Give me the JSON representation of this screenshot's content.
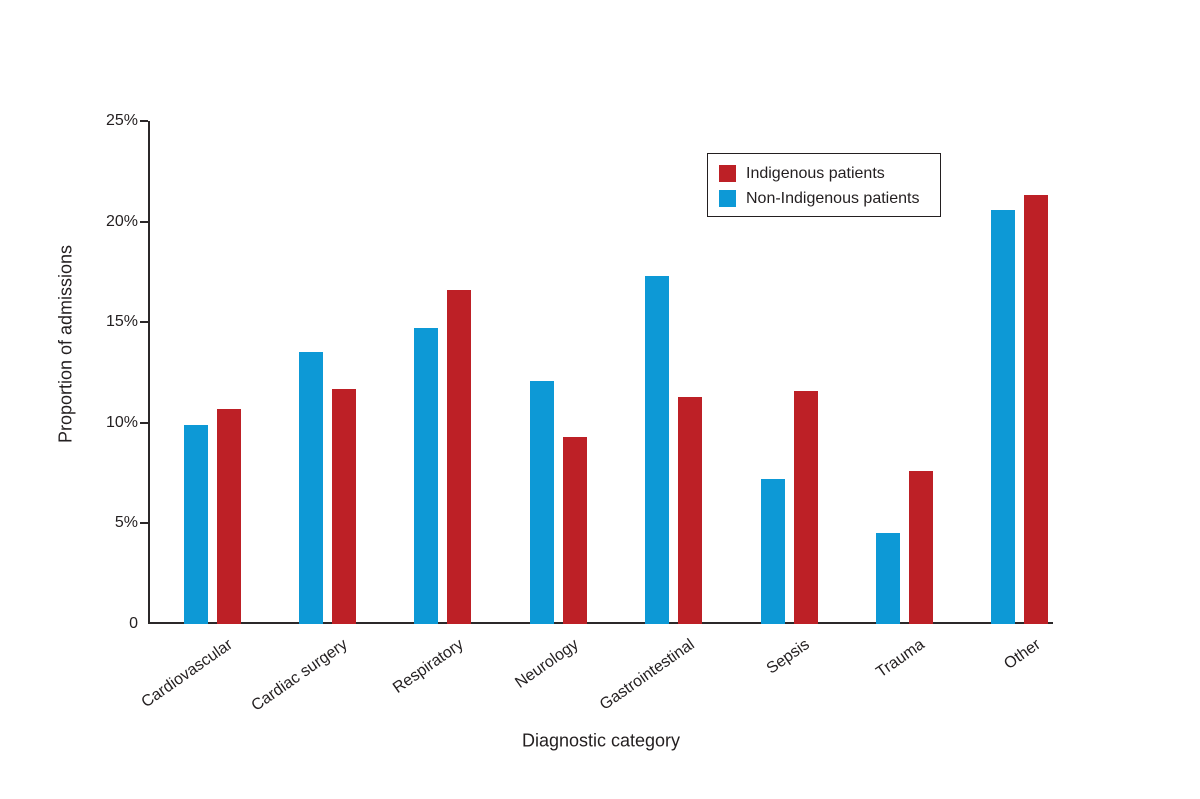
{
  "chart_data": {
    "type": "bar",
    "title": "",
    "xlabel": "Diagnostic category",
    "ylabel": "Proportion of admissions",
    "categories": [
      "Cardiovascular",
      "Cardiac surgery",
      "Respiratory",
      "Neurology",
      "Gastrointestinal",
      "Sepsis",
      "Trauma",
      "Other"
    ],
    "series": [
      {
        "name": "Indigenous patients",
        "color": "#bd2026",
        "values": [
          10.7,
          11.7,
          16.6,
          9.3,
          11.3,
          11.6,
          7.6,
          21.3
        ]
      },
      {
        "name": "Non-Indigenous patients",
        "color": "#0d99d6",
        "values": [
          9.9,
          13.5,
          14.7,
          12.1,
          17.3,
          7.2,
          4.5,
          20.6
        ]
      }
    ],
    "bar_draw_order": [
      1,
      0
    ],
    "ylim": [
      0,
      25
    ],
    "ytick_values": [
      0,
      5,
      10,
      15,
      20,
      25
    ],
    "ytick_labels": [
      "0",
      "5%",
      "10%",
      "15%",
      "20%",
      "25%"
    ],
    "legend_position": "upper-right-inside",
    "grid": false
  },
  "colors": {
    "axis": "#2b2829",
    "text": "#231f20",
    "background": "#ffffff"
  }
}
